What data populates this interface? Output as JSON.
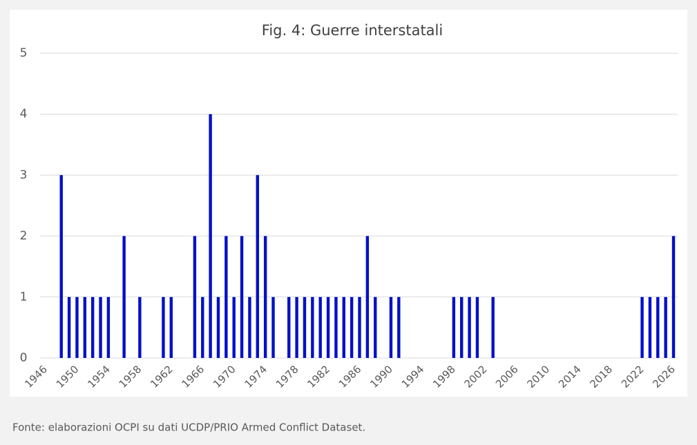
{
  "chart_data": {
    "type": "bar",
    "title": "Fig. 4: Guerre interstatali",
    "source": "Fonte: elaborazioni OCPI su dati UCDP/PRIO Armed Conflict Dataset.",
    "x": [
      1948,
      1949,
      1950,
      1951,
      1952,
      1953,
      1954,
      1956,
      1958,
      1961,
      1962,
      1965,
      1966,
      1967,
      1968,
      1969,
      1970,
      1971,
      1972,
      1973,
      1974,
      1975,
      1977,
      1978,
      1979,
      1980,
      1981,
      1982,
      1983,
      1984,
      1985,
      1986,
      1987,
      1988,
      1990,
      1991,
      1998,
      1999,
      2000,
      2001,
      2003,
      2022,
      2023,
      2024,
      2025,
      2026
    ],
    "values": [
      3,
      1,
      1,
      1,
      1,
      1,
      1,
      2,
      1,
      1,
      1,
      2,
      1,
      4,
      1,
      2,
      1,
      2,
      1,
      3,
      2,
      1,
      1,
      1,
      1,
      1,
      1,
      1,
      1,
      1,
      1,
      1,
      2,
      1,
      1,
      1,
      1,
      1,
      1,
      1,
      1,
      1,
      1,
      1,
      1,
      2
    ],
    "color": "#0010c8",
    "xlim": [
      1946,
      2026
    ],
    "xticks": [
      1946,
      1950,
      1954,
      1958,
      1962,
      1966,
      1970,
      1974,
      1978,
      1982,
      1986,
      1990,
      1994,
      1998,
      2002,
      2006,
      2010,
      2014,
      2018,
      2022,
      2026
    ],
    "ylim": [
      0,
      5
    ],
    "yticks": [
      0,
      1,
      2,
      3,
      4,
      5
    ],
    "grid": true
  }
}
